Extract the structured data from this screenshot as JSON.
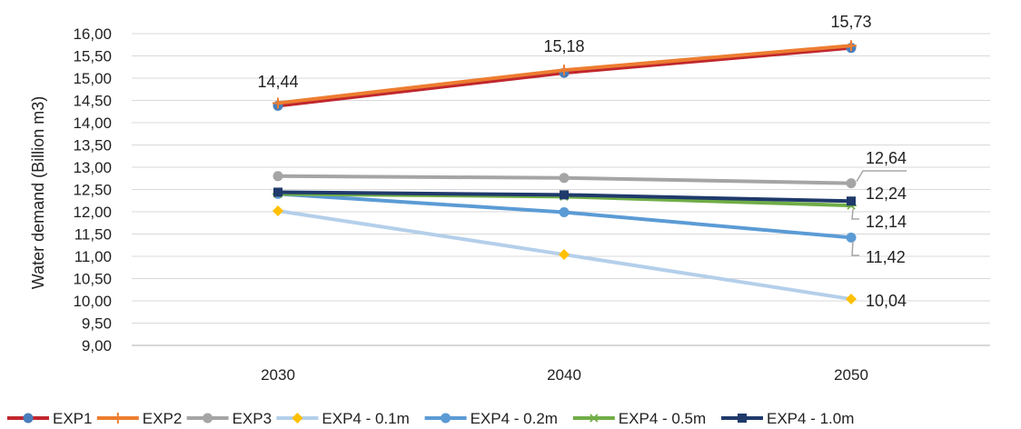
{
  "chart_data": {
    "type": "line",
    "title": "",
    "xlabel": "",
    "ylabel": "Water demand (Billion m3)",
    "categories": [
      "2030",
      "2040",
      "2050"
    ],
    "ylim": [
      9.0,
      16.0
    ],
    "ytick_step": 0.5,
    "yticks": [
      "9,00",
      "9,50",
      "10,00",
      "10,50",
      "11,00",
      "11,50",
      "12,00",
      "12,50",
      "13,00",
      "13,50",
      "14,00",
      "14,50",
      "15,00",
      "15,50",
      "16,00"
    ],
    "grid": "horizontal",
    "legend_position": "bottom",
    "series": [
      {
        "name": "EXP1",
        "values": [
          14.38,
          15.12,
          15.68
        ],
        "color": "#c0272d",
        "marker": "circle",
        "marker_color": "#4a7ebb"
      },
      {
        "name": "EXP2",
        "values": [
          14.44,
          15.18,
          15.73
        ],
        "color": "#ed7d31",
        "marker": "plus",
        "marker_color": "#ed7d31"
      },
      {
        "name": "EXP3",
        "values": [
          12.8,
          12.76,
          12.64
        ],
        "color": "#a5a5a5",
        "marker": "circle",
        "marker_color": "#a5a5a5"
      },
      {
        "name": "EXP4 - 0.1m",
        "values": [
          12.02,
          11.04,
          10.04
        ],
        "color": "#b4cfea",
        "marker": "diamond",
        "marker_color": "#ffc000"
      },
      {
        "name": "EXP4 - 0.2m",
        "values": [
          12.4,
          11.99,
          11.42
        ],
        "color": "#5b9bd5",
        "marker": "circle",
        "marker_color": "#5b9bd5"
      },
      {
        "name": "EXP4 - 0.5m",
        "values": [
          12.4,
          12.34,
          12.14
        ],
        "color": "#70ad47",
        "marker": "star",
        "marker_color": "#70ad47"
      },
      {
        "name": "EXP4 - 1.0m",
        "values": [
          12.44,
          12.38,
          12.24
        ],
        "color": "#1f3a6b",
        "marker": "square",
        "marker_color": "#1f3a6b"
      }
    ],
    "data_labels": [
      {
        "series": "EXP2",
        "category": "2030",
        "text": "14,44"
      },
      {
        "series": "EXP2",
        "category": "2040",
        "text": "15,18"
      },
      {
        "series": "EXP2",
        "category": "2050",
        "text": "15,73"
      },
      {
        "series": "EXP3",
        "category": "2050",
        "text": "12,64"
      },
      {
        "series": "EXP4 - 1.0m",
        "category": "2050",
        "text": "12,24"
      },
      {
        "series": "EXP4 - 0.5m",
        "category": "2050",
        "text": "12,14"
      },
      {
        "series": "EXP4 - 0.2m",
        "category": "2050",
        "text": "11,42"
      },
      {
        "series": "EXP4 - 0.1m",
        "category": "2050",
        "text": "10,04"
      }
    ]
  }
}
